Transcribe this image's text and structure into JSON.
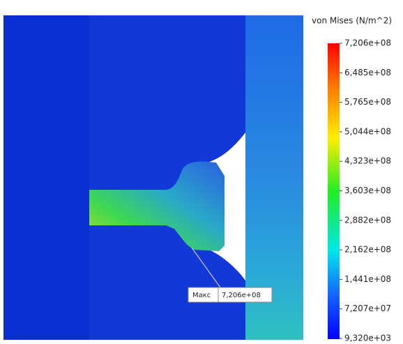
{
  "legend": {
    "title": "von Mises (N/m^2)",
    "labels": [
      "7,206e+08",
      "6,485e+08",
      "5,765e+08",
      "5,044e+08",
      "4,323e+08",
      "3,603e+08",
      "2,882e+08",
      "2,162e+08",
      "1,441e+08",
      "7,207e+07",
      "9,320e+03"
    ]
  },
  "annotation": {
    "label": "Макс",
    "value": "7,206e+08"
  }
}
